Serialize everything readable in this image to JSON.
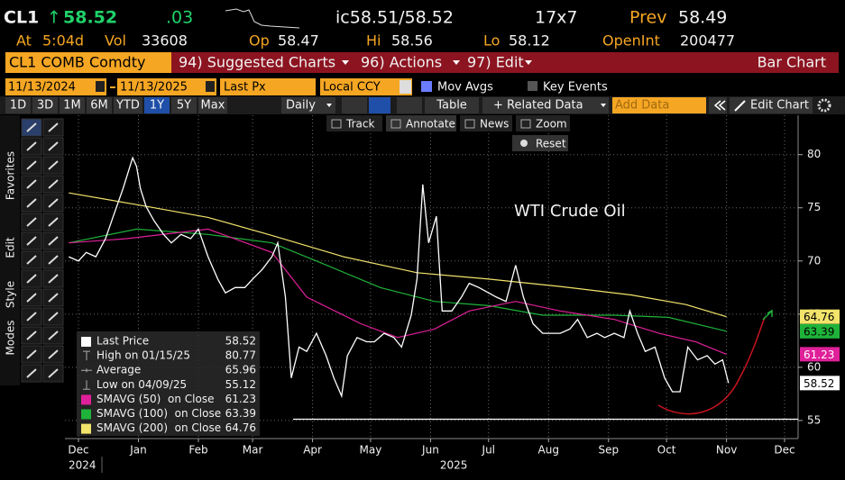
{
  "header": {
    "symbol": "CL1",
    "arrow": "↑",
    "last": "58.52",
    "change": ".03",
    "bid_ask": "ic58.51/58.52",
    "size": "17x7",
    "prev_label": "Prev",
    "prev": "58.49",
    "at_label": "At",
    "time": "5:04d",
    "vol_label": "Vol",
    "vol": "33608",
    "op_label": "Op",
    "op": "58.47",
    "hi_label": "Hi",
    "hi": "58.56",
    "lo_label": "Lo",
    "lo": "58.12",
    "oi_label": "OpenInt",
    "oi": "200477"
  },
  "menu": {
    "security": "CL1 COMB Comdty",
    "items": [
      "94) Suggested Charts",
      "96) Actions",
      "97) Edit"
    ],
    "chart_type": "Bar Chart"
  },
  "settings": {
    "start": "11/13/2024",
    "end": "11/13/2025",
    "field": "Last Px",
    "currency": "Local CCY",
    "mov_avgs": "Mov Avgs",
    "key_events": "Key Events"
  },
  "toolbar": {
    "periods": [
      "1D",
      "3D",
      "1M",
      "6M",
      "YTD",
      "1Y",
      "5Y",
      "Max"
    ],
    "active_period": 5,
    "frequency": "Daily",
    "table": "Table",
    "related": "+ Related Data",
    "add_data": "Add Data",
    "edit_chart": "Edit Chart"
  },
  "overlay": {
    "tools": [
      "Track",
      "Annotate",
      "News",
      "Zoom"
    ],
    "reset": "Reset"
  },
  "sidebar": [
    "Favorites",
    "Edit",
    "Style",
    "Modes"
  ],
  "chart_data": {
    "type": "line",
    "title": "WTI Crude Oil",
    "xlim": [
      7,
      386
    ],
    "ylim": [
      53.3,
      83.7
    ],
    "xticks": [
      {
        "value": 14,
        "label": "Dec"
      },
      {
        "value": 45,
        "label": "Jan"
      },
      {
        "value": 76,
        "label": "Feb"
      },
      {
        "value": 104,
        "label": "Mar"
      },
      {
        "value": 135,
        "label": "Apr"
      },
      {
        "value": 165,
        "label": "May"
      },
      {
        "value": 196,
        "label": "Jun"
      },
      {
        "value": 226,
        "label": "Jul"
      },
      {
        "value": 257,
        "label": "Aug"
      },
      {
        "value": 288,
        "label": "Sep"
      },
      {
        "value": 318,
        "label": "Oct"
      },
      {
        "value": 349,
        "label": "Nov"
      },
      {
        "value": 379,
        "label": "Dec"
      }
    ],
    "year_ticks": [
      {
        "value": 14,
        "label": "2024"
      },
      {
        "value": 206,
        "label": "2025"
      }
    ],
    "yticks": [
      55,
      60,
      65,
      70,
      75,
      80
    ],
    "grid": true,
    "series": [
      {
        "name": "Last Price",
        "color": "#ffffff",
        "x": [
          9,
          14,
          18,
          23,
          28,
          32,
          37,
          42,
          44,
          46,
          49,
          53,
          58,
          62,
          67,
          72,
          76,
          81,
          86,
          90,
          95,
          100,
          104,
          109,
          114,
          117,
          121,
          124,
          128,
          132,
          137,
          142,
          146,
          150,
          153,
          158,
          163,
          167,
          172,
          177,
          181,
          186,
          189,
          192,
          195,
          199,
          202,
          207,
          212,
          216,
          221,
          226,
          230,
          235,
          240,
          244,
          249,
          254,
          258,
          263,
          268,
          272,
          277,
          282,
          286,
          291,
          296,
          299,
          303,
          307,
          312,
          317,
          321,
          325,
          329,
          334,
          339,
          343,
          347,
          350
        ],
        "values": [
          70.4,
          70,
          70.8,
          70.4,
          72.1,
          74.2,
          76.8,
          79.7,
          78.9,
          76.8,
          75.1,
          73.8,
          72.5,
          71.7,
          72.5,
          72.1,
          73,
          70.4,
          68.3,
          67,
          67.5,
          67.5,
          68.3,
          69.2,
          70.4,
          71.7,
          66.6,
          59,
          61.9,
          61.5,
          63.2,
          61.1,
          59,
          57.3,
          61.1,
          62.8,
          62.4,
          62.4,
          63.2,
          62.8,
          61.9,
          64.9,
          68.3,
          77.2,
          71.7,
          74.2,
          65.3,
          65.3,
          66.6,
          67.9,
          67.5,
          67,
          66.6,
          66.2,
          69.6,
          66.6,
          64.1,
          63.2,
          63.2,
          63.2,
          63.6,
          64.5,
          62.8,
          63.2,
          62.8,
          63.2,
          62.8,
          65.3,
          63.2,
          61.5,
          61.9,
          59,
          57.7,
          57.7,
          61.9,
          60.7,
          61.1,
          60.3,
          60.7,
          58.52
        ]
      },
      {
        "name": "SMAVG (50)  on Close",
        "color": "#e0209a",
        "x": [
          9,
          39,
          81,
          114,
          132,
          160,
          179,
          198,
          216,
          240,
          263,
          291,
          314,
          333,
          349
        ],
        "values": [
          71.7,
          72.1,
          73,
          70.8,
          66.6,
          64.1,
          62.8,
          63.6,
          65.3,
          66.2,
          65.3,
          64.5,
          63.2,
          62.4,
          61.23
        ]
      },
      {
        "name": "SMAVG (100)  on Close",
        "color": "#1fb33a",
        "x": [
          9,
          44,
          81,
          114,
          137,
          170,
          198,
          226,
          254,
          291,
          319,
          349
        ],
        "values": [
          71.7,
          73,
          72.5,
          71.7,
          70,
          67.5,
          66.2,
          65.8,
          64.9,
          64.9,
          64.7,
          63.39
        ]
      },
      {
        "name": "SMAVG (200)  on Close",
        "color": "#f2e36b",
        "x": [
          9,
          44,
          81,
          114,
          151,
          189,
          226,
          263,
          300,
          328,
          349
        ],
        "values": [
          76.4,
          75.3,
          74.1,
          72.4,
          70.4,
          68.9,
          68.3,
          67.6,
          66.8,
          65.9,
          64.76
        ]
      }
    ],
    "stats": [
      {
        "label": "High on 01/15/25",
        "value": 80.77
      },
      {
        "label": "Average",
        "value": 65.96
      },
      {
        "label": "Low on 04/09/25",
        "value": 55.12
      }
    ]
  }
}
